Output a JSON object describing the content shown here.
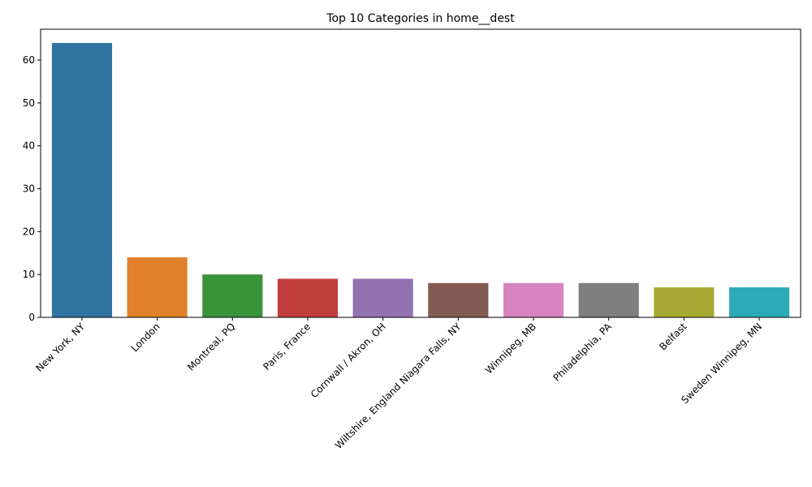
{
  "chart_data": {
    "type": "bar",
    "title": "Top 10 Categories in home__dest",
    "xlabel": "",
    "ylabel": "",
    "ylim": [
      0,
      67.2
    ],
    "yticks": [
      0,
      10,
      20,
      30,
      40,
      50,
      60
    ],
    "grid": false,
    "categories": [
      "New York, NY",
      "London",
      "Montreal, PQ",
      "Paris, France",
      "Cornwall / Akron, OH",
      "Wiltshire, England Niagara Falls, NY",
      "Winnipeg, MB",
      "Philadelphia, PA",
      "Belfast",
      "Sweden Winnipeg, MN"
    ],
    "values": [
      64,
      14,
      10,
      9,
      9,
      8,
      8,
      8,
      7,
      7
    ],
    "colors": [
      "#3274a1",
      "#e1812c",
      "#3a923a",
      "#c03d3e",
      "#9372b2",
      "#845b53",
      "#d684bd",
      "#7f7f7f",
      "#a9aa35",
      "#2eabb8"
    ]
  }
}
